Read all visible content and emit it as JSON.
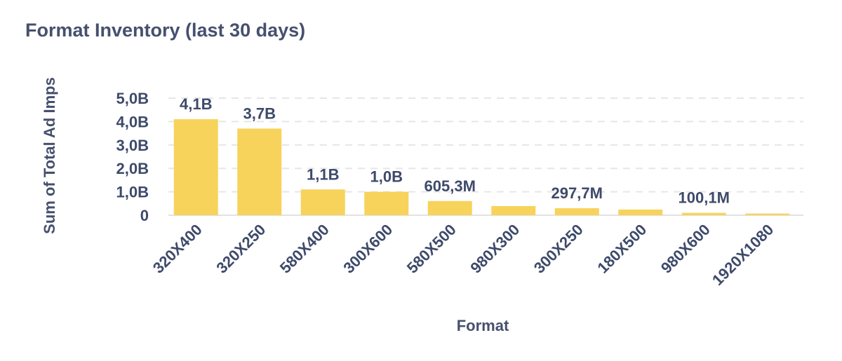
{
  "title": "Format Inventory (last 30 days)",
  "chart_data": {
    "type": "bar",
    "xlabel": "Format",
    "ylabel": "Sum of Total Ad Imps",
    "categories": [
      "320X400",
      "320X250",
      "580X400",
      "300X600",
      "580X500",
      "980X300",
      "300X250",
      "180X500",
      "980X600",
      "1920X1080"
    ],
    "values": [
      4100000000,
      3700000000,
      1100000000,
      1000000000,
      605300000,
      390000000,
      297700000,
      240000000,
      100100000,
      70000000
    ],
    "data_labels": [
      "4,1B",
      "3,7B",
      "1,1B",
      "1,0B",
      "605,3M",
      "",
      "297,7M",
      "",
      "100,1M",
      ""
    ],
    "ylim": [
      0,
      5000000000
    ],
    "yticks": [
      0,
      1000000000,
      2000000000,
      3000000000,
      4000000000,
      5000000000
    ],
    "ytick_labels": [
      "0",
      "1,0B",
      "2,0B",
      "3,0B",
      "4,0B",
      "5,0B"
    ],
    "grid": true,
    "bar_color": "#f7d35c",
    "text_color": "#3e4a6a"
  }
}
